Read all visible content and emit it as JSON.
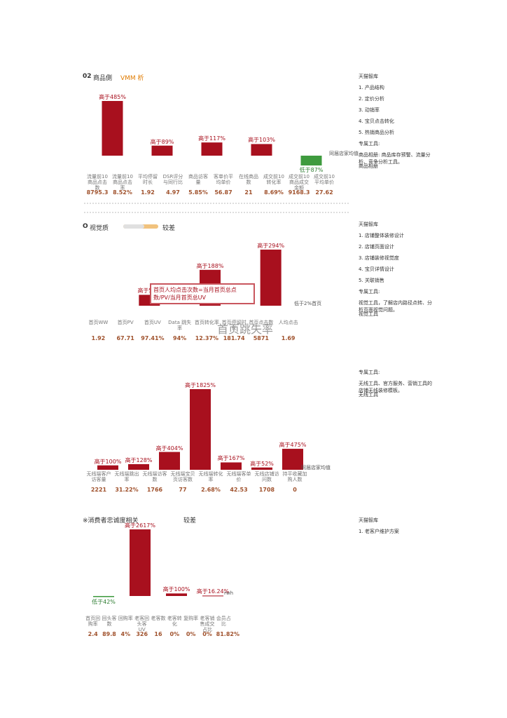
{
  "sections": [
    {
      "header": [
        "02",
        "商品側",
        "VMM 析"
      ],
      "bar_color": "#a8101e",
      "negative_color": "#3e9b3e",
      "bars": [
        {
          "label": "高于485%",
          "value": 485
        },
        {
          "label": "高于89%",
          "value": 89
        },
        {
          "label": "高于117%",
          "value": 117
        },
        {
          "label": "高于103%",
          "value": 103
        },
        {
          "label": "低于87%",
          "value": -87
        }
      ],
      "legend": "同届店家均值",
      "metrics": [
        {
          "name": "流量前10商品点击数",
          "value": "8795.3"
        },
        {
          "name": "流量前10商品点击率",
          "value": "8.52%"
        },
        {
          "name": "平均停留时长",
          "value": "1.92"
        },
        {
          "name": "DSR评分与同行比",
          "value": "4.97"
        },
        {
          "name": "商品访客量",
          "value": "5.85%"
        },
        {
          "name": "客单价平均单价",
          "value": "56.87"
        },
        {
          "name": "在线商品数",
          "value": "21"
        },
        {
          "name": "成交前10转化率",
          "value": "8.69%"
        },
        {
          "name": "成交前10商品成交金额",
          "value": "9168.3"
        },
        {
          "name": "成交前10平均单价",
          "value": "27.62"
        }
      ],
      "sidebar": [
        "天猫智库",
        "1. 产品结构",
        "2. 定价分析",
        "3. 动销率",
        "4. 宝贝点击转化",
        "5. 热销商品分析",
        "专属工具:",
        "商品相册: 商品库存预警、流量分析、竞争分析工具。",
        "商品相册"
      ]
    },
    {
      "header": [
        "O",
        "视觉质",
        "较差"
      ],
      "bar_color": "#a8101e",
      "negative_color": "#3e9b3e",
      "bars": [
        {
          "label": "高于57%",
          "value": 57
        },
        {
          "label": "高于188%",
          "value": 188
        },
        {
          "label": "高于294%",
          "value": 294
        }
      ],
      "legend": "低于2%首页",
      "note": "首页人均点击次数=当月首页总点数/PV/当月首页总UV",
      "big_label": "首页跳失率",
      "metrics": [
        {
          "name": "首页WW",
          "value": "1.92"
        },
        {
          "name": "首页PV",
          "value": "67.71"
        },
        {
          "name": "首页UV",
          "value": "97.41%"
        },
        {
          "name": "Data 跳失率",
          "value": "94%"
        },
        {
          "name": "首页转化率",
          "value": "12.37%"
        },
        {
          "name": "首页停留时长",
          "value": "181.74"
        },
        {
          "name": "首页点击数",
          "value": "5871"
        },
        {
          "name": "人均点击",
          "value": "1.69"
        }
      ],
      "sidebar": [
        "天猫智库",
        "1. 店铺整体装修设计",
        "2. 店铺页面设计",
        "3. 店铺装修视觉度",
        "4. 宝贝详情设计",
        "5. 关联销售",
        "专属工具:",
        "视觉工具，了解店内路径点转、分析页面视觉问题。",
        "视觉工具"
      ]
    },
    {
      "header": [],
      "bar_color": "#a8101e",
      "negative_color": "#3e9b3e",
      "bars": [
        {
          "label": "高于100%",
          "value": 100
        },
        {
          "label": "高于128%",
          "value": 128
        },
        {
          "label": "高于404%",
          "value": 404
        },
        {
          "label": "高于1825%",
          "value": 1825
        },
        {
          "label": "高于167%",
          "value": 167
        },
        {
          "label": "高于52%",
          "value": 52
        },
        {
          "label": "高于475%",
          "value": 475
        }
      ],
      "legend": "同届店家均值",
      "metrics": [
        {
          "name": "无线端客户访客量",
          "value": "2221"
        },
        {
          "name": "无线端跳出率",
          "value": "31.22%"
        },
        {
          "name": "无线端访客数",
          "value": "1766"
        },
        {
          "name": "无线端宝贝页访客数",
          "value": "77"
        },
        {
          "name": "无线端转化率",
          "value": "2.68%"
        },
        {
          "name": "无线端客单价",
          "value": "42.53"
        },
        {
          "name": "无线店铺访问数",
          "value": "1708"
        },
        {
          "name": "持平收藏加购人数",
          "value": "0"
        }
      ],
      "sidebar": [
        "专属工具:",
        "无线工具、官方服务、营销工具的店铺无线装修模板。",
        "无线工具"
      ]
    },
    {
      "header": [
        "※消费者忠诚度相关",
        "较差"
      ],
      "bar_color": "#a8101e",
      "negative_color": "#3e9b3e",
      "bars": [
        {
          "label": "低于42%",
          "value": -42
        },
        {
          "label": "高于2617%",
          "value": 2617
        },
        {
          "label": "高于100%",
          "value": 100
        },
        {
          "label": "高于16.24%",
          "value": 16.24
        }
      ],
      "legend": "rwh",
      "metrics": [
        {
          "name": "首页回购率",
          "value": "2.4"
        },
        {
          "name": "回头客数",
          "value": "89.8"
        },
        {
          "name": "回购率",
          "value": "4%"
        },
        {
          "name": "老客回头客UV",
          "value": "326"
        },
        {
          "name": "老客数",
          "value": "16"
        },
        {
          "name": "老客转化",
          "value": "0%"
        },
        {
          "name": "复购率",
          "value": "0%"
        },
        {
          "name": "老客销售成交占比",
          "value": "0%"
        },
        {
          "name": "会员占比",
          "value": "81.82%"
        }
      ],
      "sidebar": [
        "天猫智库",
        "1. 老客户维护方案"
      ]
    }
  ]
}
